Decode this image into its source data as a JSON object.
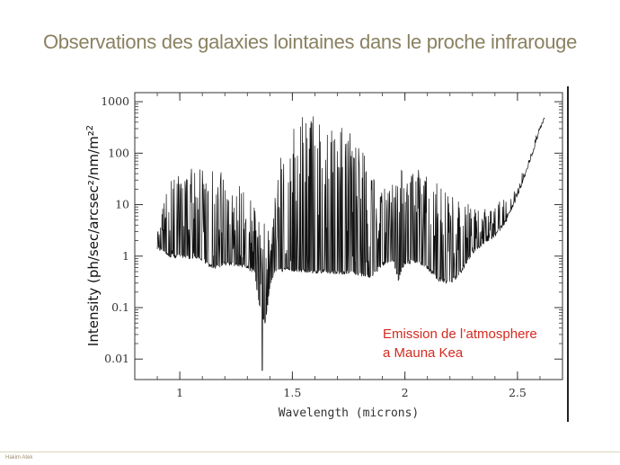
{
  "slide": {
    "title": "Observations des galaxies lointaines dans le proche infrarouge",
    "author": "Hakim Atek"
  },
  "chart_data": {
    "type": "line",
    "xlabel": "Wavelength (microns)",
    "ylabel": "Intensity (ph/sec/arcsec²/nm/m²",
    "xlim": [
      0.8,
      2.7
    ],
    "ylim": [
      0.004,
      1500
    ],
    "yscale": "log",
    "x_ticks": [
      1,
      1.5,
      2,
      2.5
    ],
    "x_tick_labels": [
      "1",
      "1.5",
      "2",
      "2.5"
    ],
    "y_ticks": [
      0.01,
      0.1,
      1,
      10,
      100,
      1000
    ],
    "y_tick_labels": [
      "0.01",
      "0.1",
      "1",
      "10",
      "100",
      "1000"
    ],
    "grid": false,
    "series": [
      {
        "color": "#111111",
        "continuum": [
          [
            0.9,
            1.5
          ],
          [
            0.95,
            1.05
          ],
          [
            1.0,
            1.0
          ],
          [
            1.05,
            0.95
          ],
          [
            1.1,
            0.85
          ],
          [
            1.15,
            0.6
          ],
          [
            1.2,
            0.72
          ],
          [
            1.25,
            0.68
          ],
          [
            1.3,
            0.6
          ],
          [
            1.33,
            0.5
          ],
          [
            1.36,
            0.08
          ],
          [
            1.38,
            0.05
          ],
          [
            1.4,
            0.25
          ],
          [
            1.42,
            0.5
          ],
          [
            1.45,
            0.55
          ],
          [
            1.5,
            0.55
          ],
          [
            1.55,
            0.52
          ],
          [
            1.6,
            0.5
          ],
          [
            1.65,
            0.5
          ],
          [
            1.7,
            0.48
          ],
          [
            1.75,
            0.47
          ],
          [
            1.8,
            0.45
          ],
          [
            1.85,
            0.4
          ],
          [
            1.9,
            0.7
          ],
          [
            1.95,
            0.8
          ],
          [
            1.97,
            0.35
          ],
          [
            2.0,
            0.75
          ],
          [
            2.05,
            0.8
          ],
          [
            2.1,
            0.6
          ],
          [
            2.15,
            0.35
          ],
          [
            2.2,
            0.3
          ],
          [
            2.25,
            0.5
          ],
          [
            2.3,
            1.2
          ],
          [
            2.35,
            1.8
          ],
          [
            2.4,
            2.5
          ],
          [
            2.45,
            5
          ],
          [
            2.5,
            15
          ],
          [
            2.55,
            60
          ],
          [
            2.6,
            300
          ],
          [
            2.62,
            500
          ]
        ],
        "peaks": [
          [
            0.9,
            3
          ],
          [
            0.95,
            30
          ],
          [
            1.0,
            50
          ],
          [
            1.05,
            60
          ],
          [
            1.1,
            60
          ],
          [
            1.15,
            50
          ],
          [
            1.2,
            40
          ],
          [
            1.25,
            40
          ],
          [
            1.3,
            30
          ],
          [
            1.33,
            10
          ],
          [
            1.4,
            3
          ],
          [
            1.45,
            100
          ],
          [
            1.5,
            400
          ],
          [
            1.55,
            700
          ],
          [
            1.6,
            600
          ],
          [
            1.65,
            500
          ],
          [
            1.7,
            400
          ],
          [
            1.75,
            300
          ],
          [
            1.8,
            150
          ],
          [
            1.85,
            50
          ],
          [
            1.9,
            20
          ],
          [
            1.95,
            30
          ],
          [
            2.0,
            60
          ],
          [
            2.05,
            60
          ],
          [
            2.1,
            40
          ],
          [
            2.15,
            30
          ],
          [
            2.2,
            20
          ],
          [
            2.25,
            15
          ],
          [
            2.3,
            10
          ],
          [
            2.35,
            8
          ],
          [
            2.4,
            10
          ],
          [
            2.45,
            15
          ],
          [
            2.5,
            40
          ],
          [
            2.55,
            150
          ],
          [
            2.6,
            400
          ],
          [
            2.62,
            500
          ]
        ]
      }
    ],
    "annotations": [
      "Emission de l’atmosphere",
      "a Mauna Kea"
    ],
    "annotation_color": "#d42a1f"
  }
}
